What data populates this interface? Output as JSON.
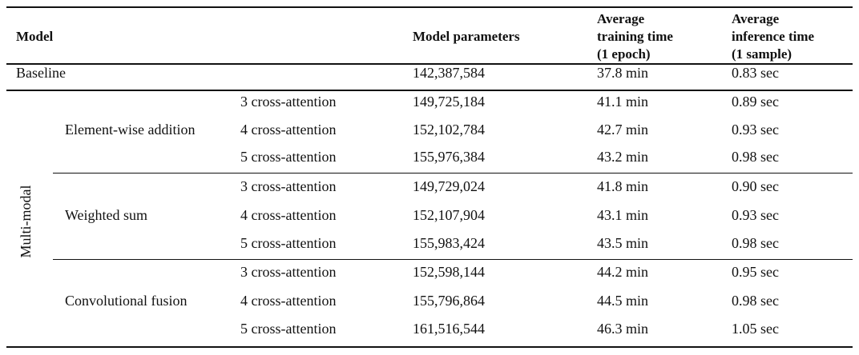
{
  "table": {
    "headers": {
      "model": "Model",
      "params": "Model parameters",
      "train": [
        "Average",
        "training time",
        "(1 epoch)"
      ],
      "infer": [
        "Average",
        "inference time",
        "(1 sample)"
      ]
    },
    "baseline": {
      "label": "Baseline",
      "params": "142,387,584",
      "train": "37.8 min",
      "infer": "0.83 sec"
    },
    "multimodal_label": "Multi-modal",
    "groups": [
      {
        "name": "Element-wise addition",
        "rows": [
          {
            "variant": "3 cross-attention",
            "params": "149,725,184",
            "train": "41.1 min",
            "infer": "0.89 sec"
          },
          {
            "variant": "4 cross-attention",
            "params": "152,102,784",
            "train": "42.7 min",
            "infer": "0.93 sec"
          },
          {
            "variant": "5 cross-attention",
            "params": "155,976,384",
            "train": "43.2 min",
            "infer": "0.98 sec"
          }
        ]
      },
      {
        "name": "Weighted sum",
        "rows": [
          {
            "variant": "3 cross-attention",
            "params": "149,729,024",
            "train": "41.8 min",
            "infer": "0.90 sec"
          },
          {
            "variant": "4 cross-attention",
            "params": "152,107,904",
            "train": "43.1 min",
            "infer": "0.93 sec"
          },
          {
            "variant": "5 cross-attention",
            "params": "155,983,424",
            "train": "43.5 min",
            "infer": "0.98 sec"
          }
        ]
      },
      {
        "name": "Convolutional fusion",
        "rows": [
          {
            "variant": "3 cross-attention",
            "params": "152,598,144",
            "train": "44.2 min",
            "infer": "0.95 sec"
          },
          {
            "variant": "4 cross-attention",
            "params": "155,796,864",
            "train": "44.5 min",
            "infer": "0.98 sec"
          },
          {
            "variant": "5 cross-attention",
            "params": "161,516,544",
            "train": "46.3 min",
            "infer": "1.05 sec"
          }
        ]
      }
    ]
  }
}
